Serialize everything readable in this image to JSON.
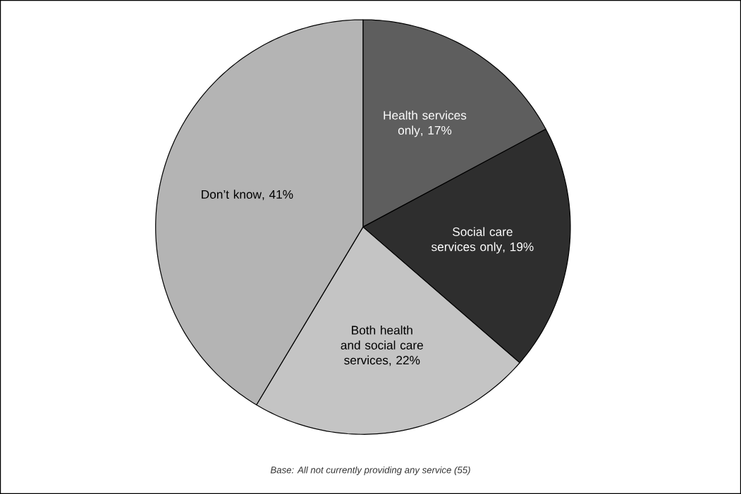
{
  "chart_data": {
    "type": "pie",
    "categories": [
      "Health services only",
      "Social care services only",
      "Both health and social care services",
      "Don’t know"
    ],
    "values": [
      17,
      19,
      22,
      41
    ],
    "value_labels": [
      ", 17%",
      ", 19%",
      ", 22%",
      ", 41%"
    ],
    "colors": [
      "#5e5e5e",
      "#2e2e2e",
      "#c4c4c4",
      "#b4b4b4"
    ],
    "annotations": [
      "Base: All not currently providing any service (55)"
    ]
  }
}
